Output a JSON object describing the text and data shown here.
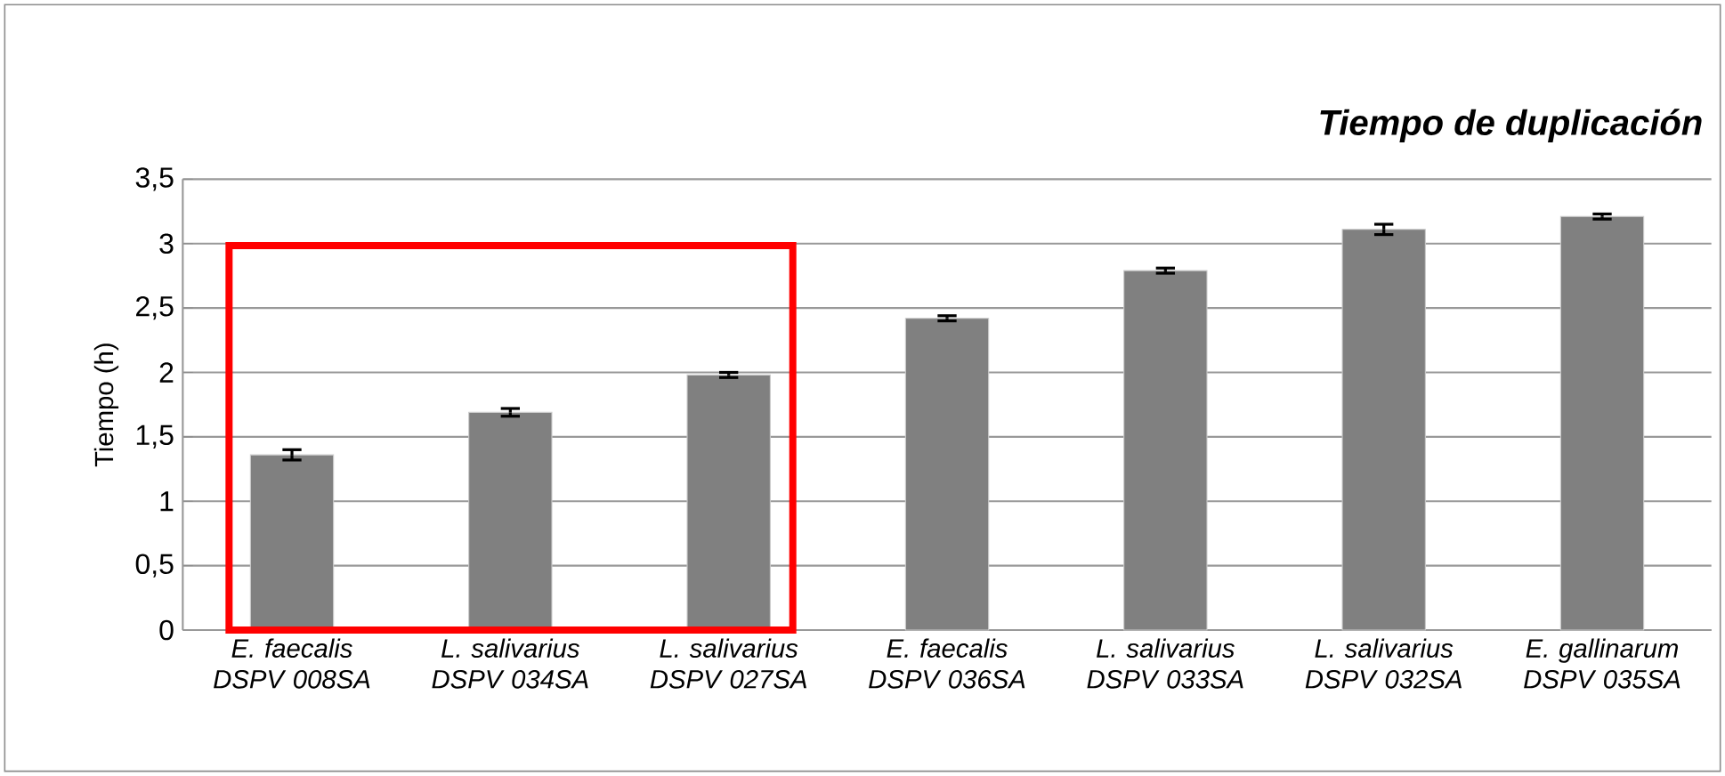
{
  "chart_data": {
    "type": "bar",
    "title": "Tiempo de duplicación",
    "ylabel": "Tiempo (h)",
    "categories": [
      "E. faecalis DSPV 008SA",
      "L. salivarius DSPV 034SA",
      "L. salivarius DSPV 027SA",
      "E. faecalis DSPV 036SA",
      "L. salivarius DSPV 033SA",
      "L. salivarius DSPV 032SA",
      "E. gallinarum DSPV 035SA"
    ],
    "values": [
      1.36,
      1.69,
      1.98,
      2.42,
      2.79,
      3.11,
      3.21
    ],
    "errors": [
      0.04,
      0.03,
      0.02,
      0.02,
      0.02,
      0.04,
      0.02
    ],
    "color": "#808080",
    "ylim": [
      0,
      3.5
    ],
    "yticks": [
      0,
      {
        "value": 0.5,
        "label": "0,5"
      },
      1,
      {
        "value": 1.5,
        "label": "1,5"
      },
      2,
      {
        "value": 2.5,
        "label": "2,5"
      },
      3,
      {
        "value": 3.5,
        "label": "3,5"
      }
    ],
    "grid": "y"
  }
}
